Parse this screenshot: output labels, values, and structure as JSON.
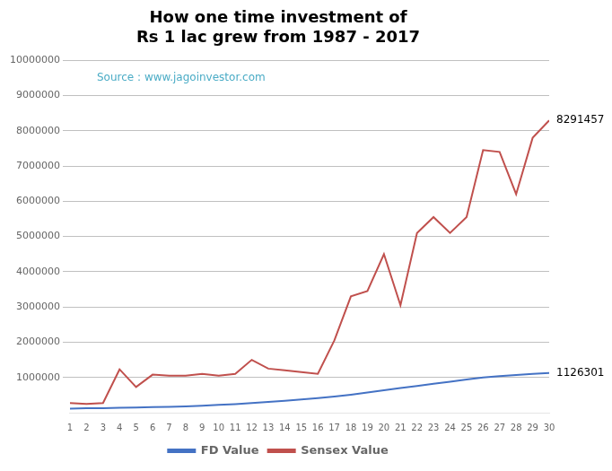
{
  "chart_data": {
    "type": "line",
    "title": "How one time investment of\nRs 1 lac grew from 1987 - 2017",
    "x": [
      1,
      2,
      3,
      4,
      5,
      6,
      7,
      8,
      9,
      10,
      11,
      12,
      13,
      14,
      15,
      16,
      17,
      18,
      19,
      20,
      21,
      22,
      23,
      24,
      25,
      26,
      27,
      28,
      29,
      30
    ],
    "series": [
      {
        "name": "FD Value",
        "color": "#4472C4",
        "values": [
          115000,
          125000,
          130000,
          140000,
          148000,
          158000,
          168000,
          180000,
          200000,
          220000,
          245000,
          275000,
          305000,
          340000,
          375000,
          415000,
          460000,
          510000,
          570000,
          635000,
          700000,
          760000,
          820000,
          880000,
          940000,
          1000000,
          1040000,
          1070000,
          1100000,
          1126301
        ]
      },
      {
        "name": "Sensex Value",
        "color": "#C0504D",
        "values": [
          275000,
          250000,
          275000,
          1230000,
          730000,
          1080000,
          1050000,
          1050000,
          1100000,
          1050000,
          1100000,
          1500000,
          1250000,
          1200000,
          1150000,
          1100000,
          2050000,
          3300000,
          3450000,
          4500000,
          3050000,
          5100000,
          5550000,
          5100000,
          5550000,
          7450000,
          7400000,
          6200000,
          7800000,
          8291457
        ]
      }
    ],
    "xlim": [
      1,
      30
    ],
    "xticks": [
      1,
      2,
      3,
      4,
      5,
      6,
      7,
      8,
      9,
      10,
      11,
      12,
      13,
      14,
      15,
      16,
      17,
      18,
      19,
      20,
      21,
      22,
      23,
      24,
      25,
      26,
      27,
      28,
      29,
      30
    ],
    "ylim": [
      0,
      10000000
    ],
    "yticks": [
      1000000,
      2000000,
      3000000,
      4000000,
      5000000,
      6000000,
      7000000,
      8000000,
      9000000,
      10000000
    ],
    "grid": "y",
    "legend": "bottom",
    "annotations": [
      {
        "text": "8291457",
        "x": 30,
        "y": 8291457
      },
      {
        "text": "1126301",
        "x": 30,
        "y": 1126301
      },
      {
        "text": "Source : www.jagoinvestor.com",
        "color": "#4BACC6"
      }
    ]
  }
}
